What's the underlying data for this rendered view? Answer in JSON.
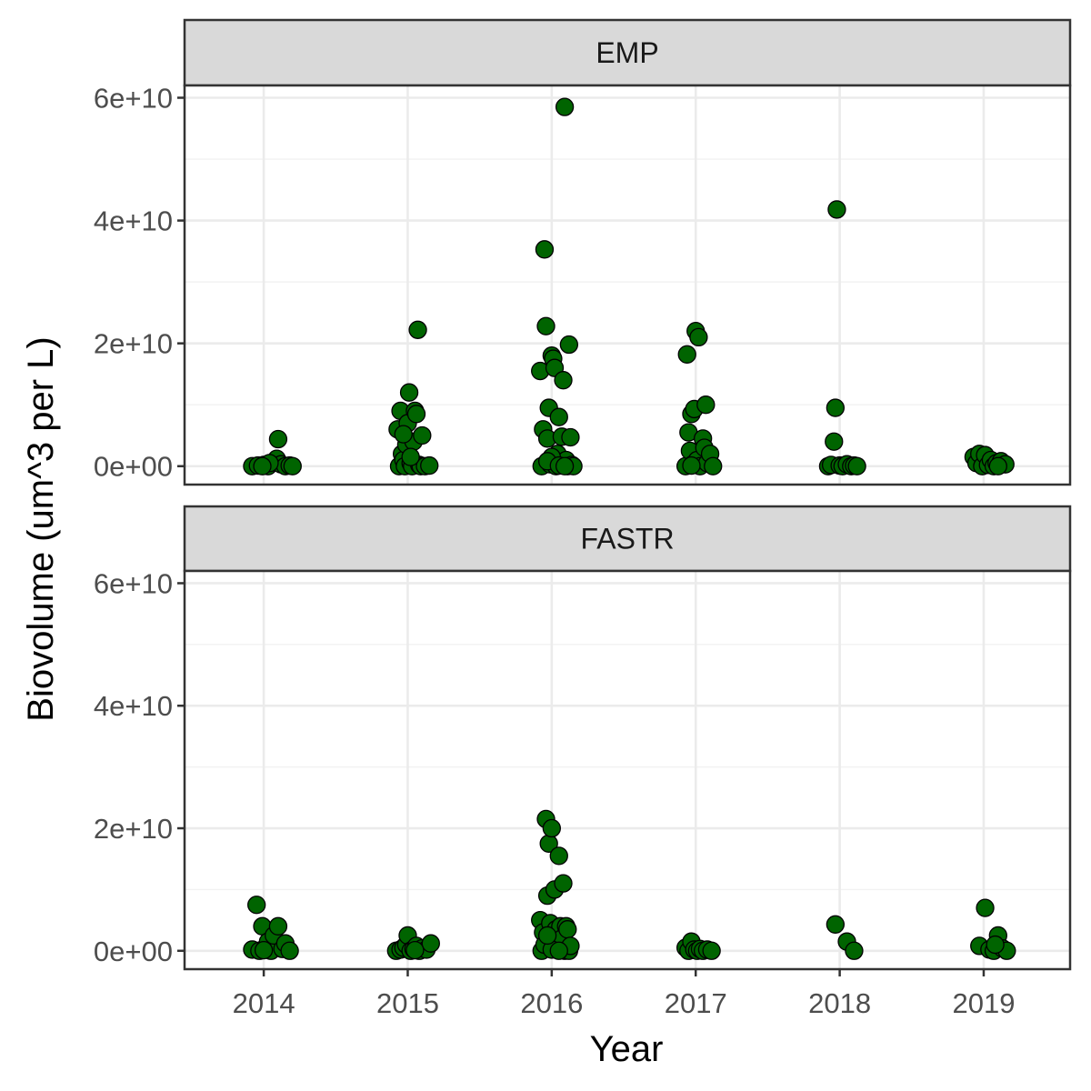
{
  "chart_data": {
    "type": "scatter",
    "xlabel": "Year",
    "ylabel": "Biovolume (um^3 per L)",
    "x_ticks": [
      "2014",
      "2015",
      "2016",
      "2017",
      "2018",
      "2019"
    ],
    "y_ticks": [
      {
        "value": 0,
        "label": "0e+00"
      },
      {
        "value": 20000000000,
        "label": "2e+10"
      },
      {
        "value": 40000000000,
        "label": "4e+10"
      },
      {
        "value": 60000000000,
        "label": "6e+10"
      }
    ],
    "ylim": [
      -3000000000,
      62000000000
    ],
    "xlim": [
      2013.45,
      2019.6
    ],
    "grid": true,
    "point_color": "#006400",
    "point_outline": "#000000",
    "strip_color": "#d9d9d9",
    "panels": [
      {
        "label": "EMP",
        "points": [
          [
            2013.92,
            0.0
          ],
          [
            2013.96,
            0.1
          ],
          [
            2014.0,
            0.2
          ],
          [
            2014.03,
            0.0
          ],
          [
            2014.07,
            0.6
          ],
          [
            2014.09,
            1.2
          ],
          [
            2014.1,
            4.4
          ],
          [
            2014.12,
            0.3
          ],
          [
            2014.15,
            0.0
          ],
          [
            2014.18,
            0.1
          ],
          [
            2014.2,
            0.0
          ],
          [
            2014.04,
            0.5
          ],
          [
            2013.99,
            0.0
          ],
          [
            2014.93,
            6.0
          ],
          [
            2014.94,
            0.0
          ],
          [
            2014.95,
            9.0
          ],
          [
            2014.96,
            2.0
          ],
          [
            2014.97,
            1.0
          ],
          [
            2014.98,
            0.0
          ],
          [
            2014.99,
            3.5
          ],
          [
            2015.0,
            7.0
          ],
          [
            2015.01,
            12.0
          ],
          [
            2015.02,
            0.5
          ],
          [
            2015.03,
            0.0
          ],
          [
            2015.04,
            4.0
          ],
          [
            2015.05,
            9.0
          ],
          [
            2015.06,
            8.5
          ],
          [
            2015.07,
            22.2
          ],
          [
            2015.08,
            0.2
          ],
          [
            2015.09,
            0.0
          ],
          [
            2015.1,
            5.0
          ],
          [
            2015.12,
            0.0
          ],
          [
            2015.15,
            0.1
          ],
          [
            2015.02,
            1.5
          ],
          [
            2014.97,
            5.2
          ],
          [
            2015.92,
            15.5
          ],
          [
            2015.93,
            0.0
          ],
          [
            2015.94,
            6.0
          ],
          [
            2015.95,
            35.3
          ],
          [
            2015.96,
            22.8
          ],
          [
            2015.97,
            4.5
          ],
          [
            2015.98,
            9.5
          ],
          [
            2015.99,
            0.3
          ],
          [
            2016.0,
            18.0
          ],
          [
            2016.01,
            17.5
          ],
          [
            2016.02,
            16.0
          ],
          [
            2016.03,
            0.0
          ],
          [
            2016.04,
            2.0
          ],
          [
            2016.05,
            8.0
          ],
          [
            2016.06,
            0.5
          ],
          [
            2016.07,
            4.8
          ],
          [
            2016.08,
            14.0
          ],
          [
            2016.09,
            58.5
          ],
          [
            2016.1,
            1.0
          ],
          [
            2016.11,
            0.0
          ],
          [
            2016.12,
            19.8
          ],
          [
            2016.13,
            4.7
          ],
          [
            2016.14,
            0.2
          ],
          [
            2016.15,
            0.0
          ],
          [
            2016.0,
            1.5
          ],
          [
            2015.97,
            0.8
          ],
          [
            2016.05,
            0.1
          ],
          [
            2016.09,
            0.0
          ],
          [
            2016.93,
            0.0
          ],
          [
            2016.94,
            18.2
          ],
          [
            2016.95,
            5.5
          ],
          [
            2016.96,
            2.5
          ],
          [
            2016.97,
            8.5
          ],
          [
            2016.98,
            0.3
          ],
          [
            2016.99,
            9.3
          ],
          [
            2017.0,
            22.0
          ],
          [
            2017.01,
            1.0
          ],
          [
            2017.02,
            21.0
          ],
          [
            2017.03,
            0.0
          ],
          [
            2017.05,
            4.5
          ],
          [
            2017.06,
            3.0
          ],
          [
            2017.07,
            10.0
          ],
          [
            2017.08,
            0.5
          ],
          [
            2017.1,
            2.0
          ],
          [
            2017.12,
            0.0
          ],
          [
            2016.97,
            0.1
          ],
          [
            2017.92,
            0.0
          ],
          [
            2017.94,
            0.2
          ],
          [
            2017.96,
            4.0
          ],
          [
            2017.97,
            9.5
          ],
          [
            2017.98,
            41.8
          ],
          [
            2018.0,
            0.1
          ],
          [
            2018.02,
            0.0
          ],
          [
            2018.05,
            0.3
          ],
          [
            2018.08,
            0.0
          ],
          [
            2018.1,
            0.1
          ],
          [
            2018.12,
            0.0
          ],
          [
            2018.93,
            1.5
          ],
          [
            2018.95,
            0.5
          ],
          [
            2018.97,
            2.0
          ],
          [
            2018.99,
            0.0
          ],
          [
            2019.01,
            1.8
          ],
          [
            2019.03,
            0.2
          ],
          [
            2019.05,
            1.0
          ],
          [
            2019.07,
            0.0
          ],
          [
            2019.09,
            0.5
          ],
          [
            2019.12,
            0.8
          ],
          [
            2019.15,
            0.3
          ],
          [
            2019.1,
            0.0
          ]
        ]
      },
      {
        "label": "FASTR",
        "points": [
          [
            2013.92,
            0.2
          ],
          [
            2013.95,
            7.5
          ],
          [
            2013.97,
            0.0
          ],
          [
            2013.99,
            4.0
          ],
          [
            2014.01,
            0.5
          ],
          [
            2014.03,
            1.5
          ],
          [
            2014.05,
            0.0
          ],
          [
            2014.07,
            2.5
          ],
          [
            2014.1,
            4.0
          ],
          [
            2014.13,
            0.3
          ],
          [
            2014.15,
            1.2
          ],
          [
            2014.18,
            0.0
          ],
          [
            2014.0,
            0.1
          ],
          [
            2014.92,
            0.0
          ],
          [
            2014.95,
            0.2
          ],
          [
            2014.97,
            0.5
          ],
          [
            2014.99,
            1.0
          ],
          [
            2015.0,
            2.5
          ],
          [
            2015.02,
            0.0
          ],
          [
            2015.04,
            0.3
          ],
          [
            2015.06,
            0.8
          ],
          [
            2015.08,
            0.0
          ],
          [
            2015.1,
            0.4
          ],
          [
            2015.13,
            0.2
          ],
          [
            2015.16,
            1.2
          ],
          [
            2015.05,
            0.1
          ],
          [
            2015.92,
            5.0
          ],
          [
            2015.93,
            0.0
          ],
          [
            2015.94,
            3.0
          ],
          [
            2015.95,
            1.0
          ],
          [
            2015.96,
            21.5
          ],
          [
            2015.97,
            9.0
          ],
          [
            2015.98,
            17.5
          ],
          [
            2015.99,
            4.5
          ],
          [
            2016.0,
            20.0
          ],
          [
            2016.01,
            1.5
          ],
          [
            2016.02,
            10.0
          ],
          [
            2016.03,
            3.5
          ],
          [
            2016.04,
            0.5
          ],
          [
            2016.05,
            15.5
          ],
          [
            2016.06,
            4.0
          ],
          [
            2016.07,
            2.0
          ],
          [
            2016.08,
            11.0
          ],
          [
            2016.09,
            0.0
          ],
          [
            2016.1,
            4.0
          ],
          [
            2016.11,
            3.5
          ],
          [
            2016.12,
            0.0
          ],
          [
            2016.13,
            0.8
          ],
          [
            2016.0,
            0.2
          ],
          [
            2015.97,
            2.5
          ],
          [
            2016.05,
            0.0
          ],
          [
            2016.93,
            0.5
          ],
          [
            2016.95,
            0.0
          ],
          [
            2016.97,
            1.5
          ],
          [
            2016.99,
            0.2
          ],
          [
            2017.01,
            0.0
          ],
          [
            2017.03,
            0.3
          ],
          [
            2017.05,
            0.0
          ],
          [
            2017.08,
            0.2
          ],
          [
            2017.11,
            0.0
          ],
          [
            2017.97,
            4.3
          ],
          [
            2018.05,
            1.5
          ],
          [
            2018.1,
            0.0
          ],
          [
            2018.97,
            0.8
          ],
          [
            2019.01,
            7.0
          ],
          [
            2019.04,
            0.2
          ],
          [
            2019.07,
            0.0
          ],
          [
            2019.1,
            2.5
          ],
          [
            2019.13,
            0.4
          ],
          [
            2019.16,
            0.0
          ],
          [
            2019.08,
            1.0
          ]
        ]
      }
    ]
  }
}
